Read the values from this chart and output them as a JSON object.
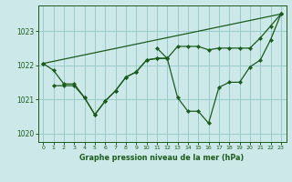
{
  "title": "Graphe pression niveau de la mer (hPa)",
  "background_color": "#cce8e8",
  "grid_color": "#99cccc",
  "line_color": "#1a5c1a",
  "xlim": [
    -0.5,
    23.5
  ],
  "ylim": [
    1019.75,
    1023.75
  ],
  "yticks": [
    1020,
    1021,
    1022,
    1023
  ],
  "xticks": [
    0,
    1,
    2,
    3,
    4,
    5,
    6,
    7,
    8,
    9,
    10,
    11,
    12,
    13,
    14,
    15,
    16,
    17,
    18,
    19,
    20,
    21,
    22,
    23
  ],
  "series": [
    {
      "x": [
        0,
        23
      ],
      "y": [
        1022.05,
        1023.5
      ]
    },
    {
      "x": [
        0,
        1,
        2,
        3,
        4,
        5,
        6,
        7,
        8,
        9,
        10,
        11,
        12
      ],
      "y": [
        1022.05,
        1021.85,
        1021.45,
        1021.45,
        1021.05,
        1020.55,
        1020.95,
        1021.25,
        1021.65,
        1021.8,
        1022.15,
        1022.2,
        1022.2
      ]
    },
    {
      "x": [
        11,
        12,
        13,
        14,
        15,
        16,
        17,
        18,
        19,
        20,
        21,
        22,
        23
      ],
      "y": [
        1022.5,
        1022.2,
        1021.05,
        1020.65,
        1020.65,
        1020.3,
        1021.35,
        1021.5,
        1021.5,
        1021.95,
        1022.15,
        1022.75,
        1023.5
      ]
    },
    {
      "x": [
        1,
        2,
        3,
        4,
        5,
        6,
        7,
        8,
        9,
        10,
        11,
        12,
        13,
        14,
        15,
        16,
        17,
        18,
        19,
        20,
        21,
        22,
        23
      ],
      "y": [
        1021.4,
        1021.4,
        1021.4,
        1021.05,
        1020.55,
        1020.95,
        1021.25,
        1021.65,
        1021.8,
        1022.15,
        1022.2,
        1022.2,
        1022.55,
        1022.55,
        1022.55,
        1022.45,
        1022.5,
        1022.5,
        1022.5,
        1022.5,
        1022.8,
        1023.15,
        1023.5
      ]
    }
  ]
}
